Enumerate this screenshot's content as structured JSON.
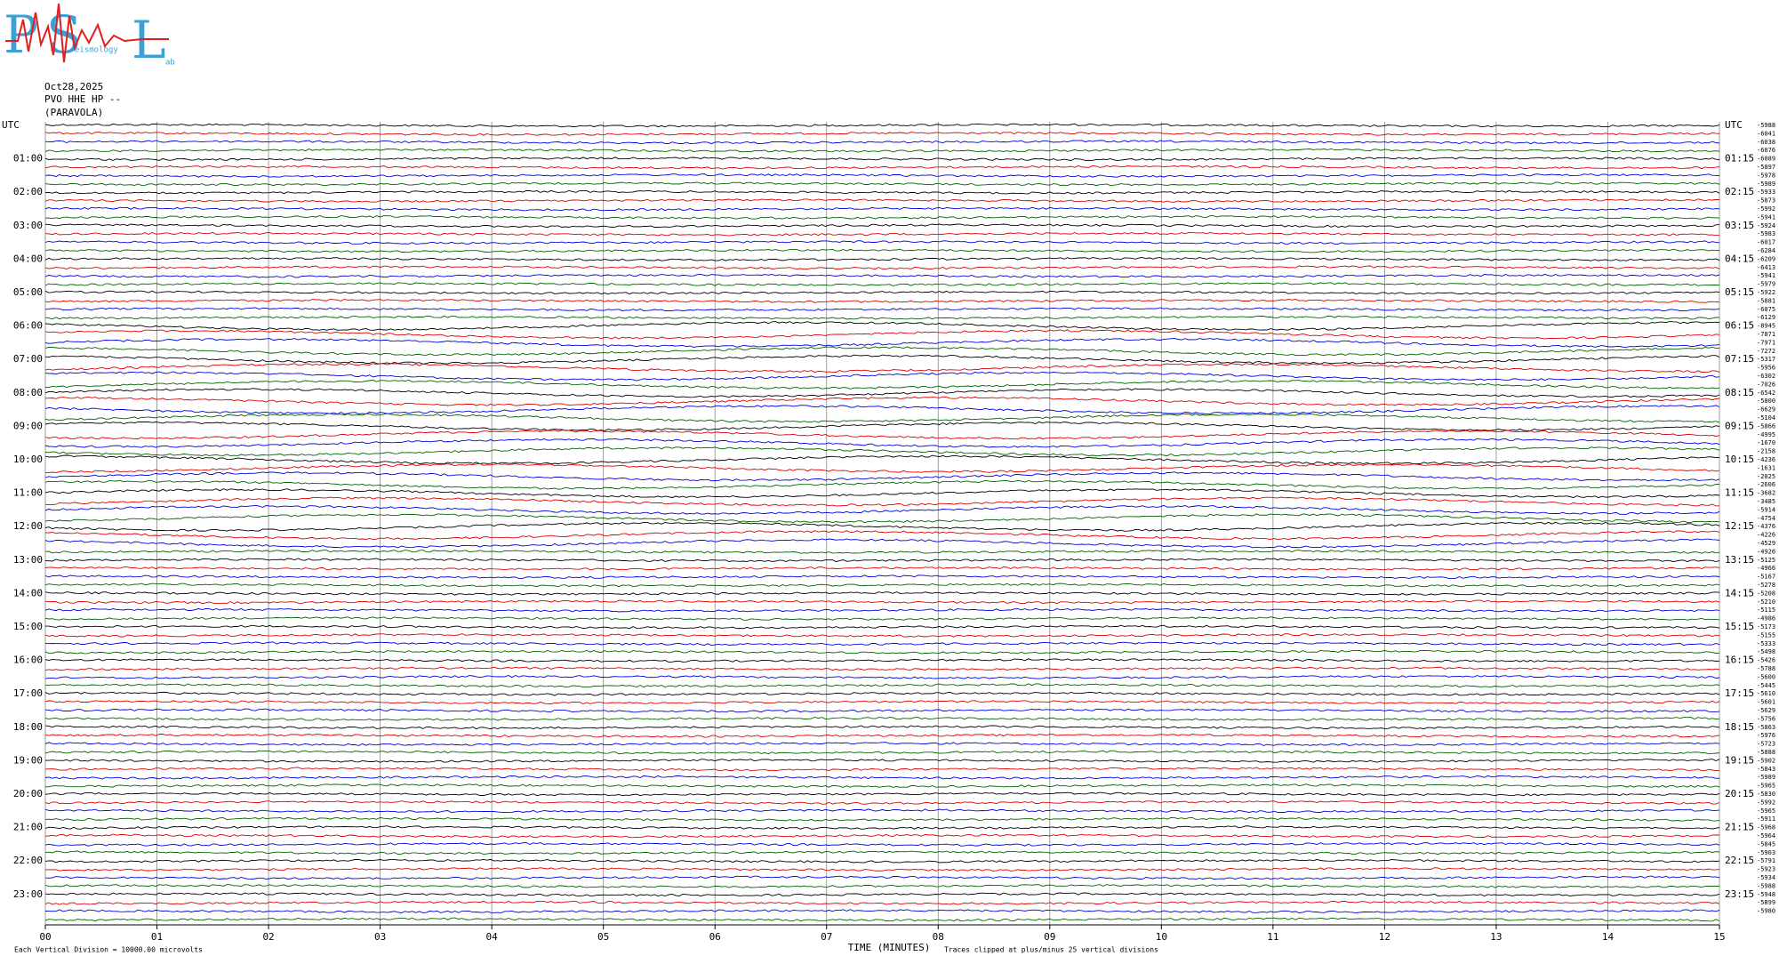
{
  "logo": {
    "letters": [
      "P",
      "S",
      "L"
    ],
    "small": [
      "eismology",
      "ab"
    ]
  },
  "header": {
    "date": "Oct28,2025",
    "station": "PVO HHE HP --",
    "location": "(PARAVOLA)"
  },
  "left_labels": [
    "UTC",
    "01:00",
    "02:00",
    "03:00",
    "04:00",
    "05:00",
    "06:00",
    "07:00",
    "08:00",
    "09:00",
    "10:00",
    "11:00",
    "12:00",
    "13:00",
    "14:00",
    "15:00",
    "16:00",
    "17:00",
    "18:00",
    "19:00",
    "20:00",
    "21:00",
    "22:00",
    "23:00"
  ],
  "right_labels": [
    "UTC",
    "01:15",
    "02:15",
    "03:15",
    "04:15",
    "05:15",
    "06:15",
    "07:15",
    "08:15",
    "09:15",
    "10:15",
    "11:15",
    "12:15",
    "13:15",
    "14:15",
    "15:15",
    "16:15",
    "17:15",
    "18:15",
    "19:15",
    "20:15",
    "21:15",
    "22:15",
    "23:15"
  ],
  "offsets": [
    "-5988",
    "-6041",
    "-6038",
    "-6076",
    "-6089",
    "-5897",
    "-5978",
    "-5989",
    "-5933",
    "-5873",
    "-5992",
    "-5941",
    "-5924",
    "-5983",
    "-6017",
    "-6284",
    "-6209",
    "-6413",
    "-5941",
    "-5979",
    "-5922",
    "-5881",
    "-6075",
    "-6129",
    "-8945",
    "-7871",
    "-7971",
    "-7272",
    "-5317",
    "-5956",
    "-6302",
    "-7026",
    "-6542",
    "-5800",
    "-6629",
    "-5104",
    "-5866",
    "-4995",
    "-1670",
    "-2158",
    "-4236",
    "-1631",
    "-2025",
    "-2606",
    "-3682",
    "-3485",
    "-5914",
    "-4754",
    "-4376",
    "-4226",
    "-4529",
    "-4926",
    "-5125",
    "-4966",
    "-5167",
    "-5278",
    "-5208",
    "-5210",
    "-5115",
    "-4986",
    "-5173",
    "-5155",
    "-5333",
    "-5498",
    "-5426",
    "-5788",
    "-5600",
    "-5445",
    "-5610",
    "-5601",
    "-5629",
    "-5756",
    "-5863",
    "-5976",
    "-5723",
    "-5888",
    "-5902",
    "-5843",
    "-5989",
    "-5965",
    "-5830",
    "-5992",
    "-5965",
    "-5911",
    "-5968",
    "-5964",
    "-5845",
    "-5903",
    "-5791",
    "-5923",
    "-5934",
    "-5988",
    "-5948",
    "-5899",
    "-5980"
  ],
  "x_ticks": [
    "00",
    "01",
    "02",
    "03",
    "04",
    "05",
    "06",
    "07",
    "08",
    "09",
    "10",
    "11",
    "12",
    "13",
    "14",
    "15"
  ],
  "footer": {
    "scale": "Each Vertical Division = 10000.00 microvolts",
    "axis_title": "TIME (MINUTES)",
    "clip_note": "Traces clipped at plus/minus 25 vertical divisions"
  }
}
